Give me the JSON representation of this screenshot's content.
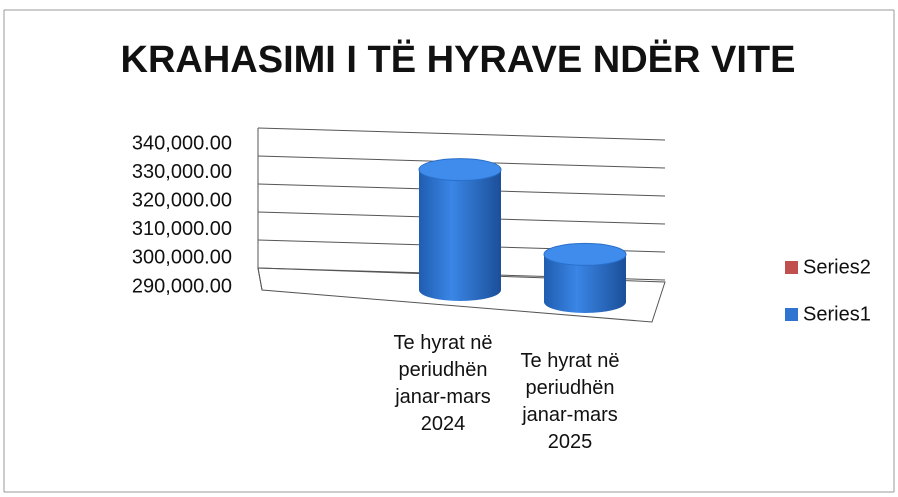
{
  "chart_data": {
    "type": "bar3d",
    "title": "KRAHASIMI I TË HYRAVE NDËR VITE",
    "categories": [
      "Te hyrat në periudhën janar-mars 2024",
      "Te hyrat në periudhën janar-mars 2025"
    ],
    "series": [
      {
        "name": "Series2",
        "color": "#c0504d",
        "values": [
          null,
          null
        ]
      },
      {
        "name": "Series1",
        "color": "#2f74d0",
        "values": [
          333000,
          307000
        ]
      }
    ],
    "ylim": [
      290000,
      340000
    ],
    "yticks": [
      {
        "value": 290000,
        "label": "290,000.00"
      },
      {
        "value": 300000,
        "label": "300,000.00"
      },
      {
        "value": 310000,
        "label": "310,000.00"
      },
      {
        "value": 320000,
        "label": "320,000.00"
      },
      {
        "value": 330000,
        "label": "330,000.00"
      },
      {
        "value": 340000,
        "label": "340,000.00"
      }
    ],
    "grid": true,
    "legend": "right"
  }
}
